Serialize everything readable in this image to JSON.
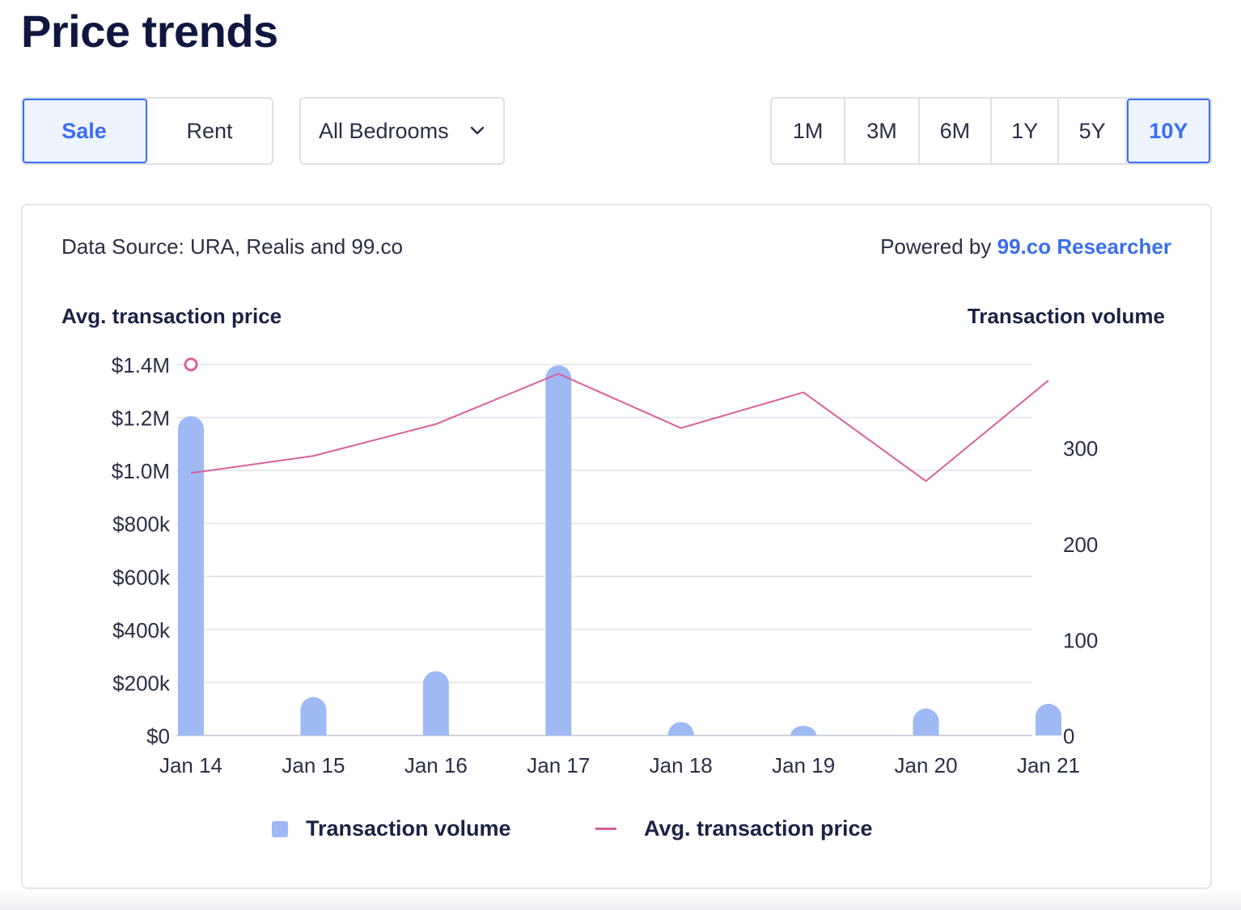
{
  "page": {
    "title": "Price trends"
  },
  "filters": {
    "type_tabs": [
      {
        "label": "Sale",
        "active": true
      },
      {
        "label": "Rent",
        "active": false
      }
    ],
    "bedrooms": {
      "selected": "All Bedrooms",
      "icon": "chevron-down-icon"
    },
    "periods": [
      {
        "label": "1M",
        "active": false
      },
      {
        "label": "3M",
        "active": false
      },
      {
        "label": "6M",
        "active": false
      },
      {
        "label": "1Y",
        "active": false
      },
      {
        "label": "5Y",
        "active": false
      },
      {
        "label": "10Y",
        "active": true
      }
    ]
  },
  "card": {
    "source": "Data Source: URA, Realis and 99.co",
    "powered_prefix": "Powered by",
    "powered_link": "99.co Researcher"
  },
  "colors": {
    "accent": "#3a6ef0",
    "bar": "#9fb9f5",
    "line": "#d9609a",
    "text": "#1b2246"
  },
  "chart_data": {
    "type": "bar+line",
    "categories": [
      "Jan 14",
      "Jan 15",
      "Jan 16",
      "Jan 17",
      "Jan 18",
      "Jan 19",
      "Jan 20",
      "Jan 21"
    ],
    "y_left": {
      "title": "Avg. transaction price",
      "range": [
        0,
        1400000
      ],
      "ticks": [
        0,
        200000,
        400000,
        600000,
        800000,
        1000000,
        1200000,
        1400000
      ],
      "tick_labels": [
        "$0",
        "$200k",
        "$400k",
        "$600k",
        "$800k",
        "$1.0M",
        "$1.2M",
        "$1.4M"
      ]
    },
    "y_right": {
      "title": "Transaction volume",
      "range": [
        0,
        387
      ],
      "ticks": [
        0,
        100,
        200,
        300
      ],
      "tick_labels": [
        "0",
        "100",
        "200",
        "300"
      ]
    },
    "grid": true,
    "legend_position": "bottom",
    "series": [
      {
        "name": "Transaction volume",
        "type": "bar",
        "axis": "right",
        "values": [
          333,
          40,
          67,
          386,
          14,
          10,
          28,
          33
        ]
      },
      {
        "name": "Avg. transaction price",
        "type": "line",
        "axis": "left",
        "values": [
          990000,
          1055000,
          1175000,
          1365000,
          1160000,
          1295000,
          960000,
          1340000
        ]
      }
    ]
  }
}
